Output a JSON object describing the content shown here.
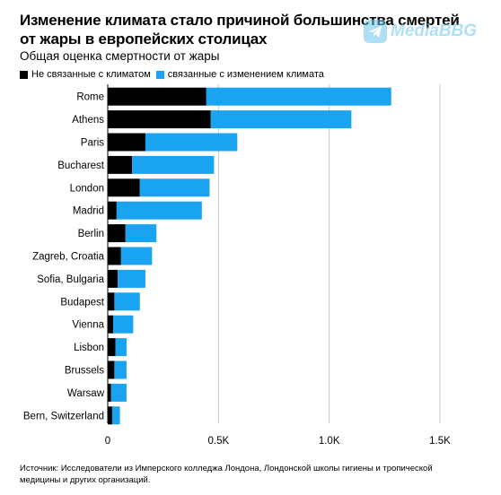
{
  "title": "Изменение климата стало причиной большинства смертей от жары в европейских столицах",
  "subtitle": "Общая оценка смертности от жары",
  "legend": {
    "non_climate": "Не связанные с климатом",
    "climate": "связанные с изменением климата"
  },
  "watermark": "MediaBBG",
  "source": "Источник: Исследователи из Имперского колледжа Лондона, Лондонской школы гигиены и тропической медицины и других организаций.",
  "colors": {
    "non_climate": "#000000",
    "climate": "#1aa3f0",
    "grid": "#c8c8c8"
  },
  "chart_data": {
    "type": "bar",
    "orientation": "horizontal",
    "stacked": true,
    "categories": [
      "Rome",
      "Athens",
      "Paris",
      "Bucharest",
      "London",
      "Madrid",
      "Berlin",
      "Zagreb, Croatia",
      "Sofia, Bulgaria",
      "Budapest",
      "Vienna",
      "Lisbon",
      "Brussels",
      "Warsaw",
      "Bern, Switzerland"
    ],
    "series": [
      {
        "name": "Не связанные с климатом",
        "values": [
          445,
          465,
          170,
          110,
          145,
          40,
          80,
          60,
          45,
          30,
          25,
          35,
          30,
          15,
          20
        ]
      },
      {
        "name": "связанные с изменением климата",
        "values": [
          835,
          635,
          415,
          370,
          315,
          385,
          140,
          140,
          125,
          115,
          90,
          50,
          55,
          70,
          35
        ]
      }
    ],
    "xlim": [
      0,
      1500
    ],
    "xticks": [
      0,
      500,
      1000,
      1500
    ],
    "xtick_labels": [
      "0",
      "0.5K",
      "1.0K",
      "1.5K"
    ],
    "grid": true
  }
}
